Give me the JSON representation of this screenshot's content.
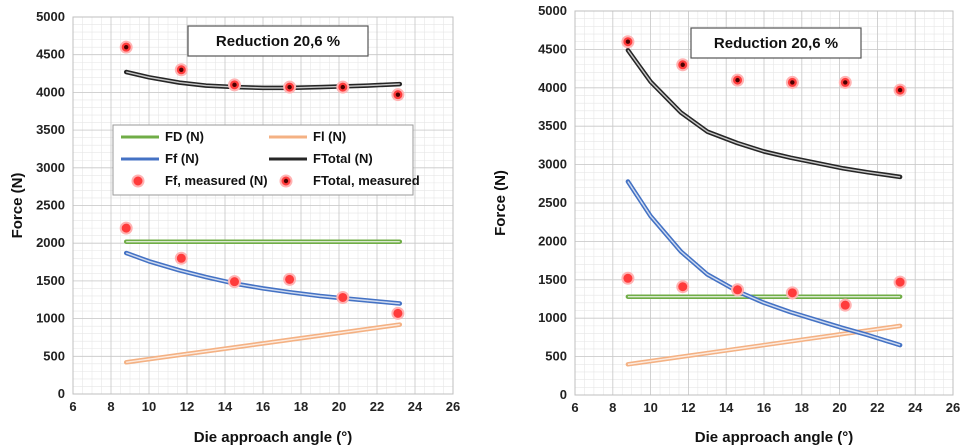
{
  "chart_data": [
    {
      "type": "line",
      "title": "Reduction 20,6 %",
      "xlabel": "Die approach angle (°)",
      "ylabel": "Force (N)",
      "xlim": [
        6,
        26
      ],
      "ylim": [
        0,
        5000
      ],
      "xticks": [
        6,
        8,
        10,
        12,
        14,
        16,
        18,
        20,
        22,
        24,
        26
      ],
      "yticks": [
        0,
        500,
        1000,
        1500,
        2000,
        2500,
        3000,
        3500,
        4000,
        4500,
        5000
      ],
      "grid": true,
      "legend": "center-left",
      "series": [
        {
          "name": "FD (N)",
          "kind": "line",
          "color": "#70ad47",
          "x": [
            8.8,
            23.2
          ],
          "y": [
            2020,
            2020
          ]
        },
        {
          "name": "Fl (N)",
          "kind": "line",
          "color": "#f4b183",
          "x": [
            8.8,
            23.2
          ],
          "y": [
            420,
            920
          ]
        },
        {
          "name": "Ff (N)",
          "kind": "line",
          "color": "#4472c4",
          "x": [
            8.8,
            10,
            11.6,
            13,
            14.6,
            16,
            17.4,
            19,
            20.2,
            21.5,
            23.2
          ],
          "y": [
            1870,
            1760,
            1640,
            1550,
            1460,
            1400,
            1350,
            1300,
            1270,
            1240,
            1200
          ]
        },
        {
          "name": "FTotal (N)",
          "kind": "line",
          "color": "#262626",
          "x": [
            8.8,
            10,
            11.6,
            13,
            14.6,
            16,
            17.4,
            19,
            20.2,
            21.5,
            23.2
          ],
          "y": [
            4270,
            4200,
            4130,
            4090,
            4070,
            4060,
            4060,
            4070,
            4080,
            4090,
            4110
          ]
        },
        {
          "name": "Ff, measured (N)",
          "kind": "marker",
          "marker": "filled",
          "x": [
            8.8,
            11.7,
            14.5,
            17.4,
            20.2,
            23.1
          ],
          "y": [
            2200,
            1800,
            1490,
            1520,
            1280,
            1070
          ]
        },
        {
          "name": "FTotal, measured",
          "kind": "marker",
          "marker": "dotted",
          "x": [
            8.8,
            11.7,
            14.5,
            17.4,
            20.2,
            23.1
          ],
          "y": [
            4600,
            4300,
            4100,
            4070,
            4070,
            3970
          ]
        }
      ]
    },
    {
      "type": "line",
      "title": "Reduction 20,6 %",
      "xlabel": "Die approach angle (°)",
      "ylabel": "Force (N)",
      "xlim": [
        6,
        26
      ],
      "ylim": [
        0,
        5000
      ],
      "xticks": [
        6,
        8,
        10,
        12,
        14,
        16,
        18,
        20,
        22,
        24,
        26
      ],
      "yticks": [
        0,
        500,
        1000,
        1500,
        2000,
        2500,
        3000,
        3500,
        4000,
        4500,
        5000
      ],
      "grid": true,
      "series": [
        {
          "name": "FD (N)",
          "kind": "line",
          "color": "#70ad47",
          "x": [
            8.8,
            23.2
          ],
          "y": [
            1280,
            1280
          ]
        },
        {
          "name": "Fl (N)",
          "kind": "line",
          "color": "#f4b183",
          "x": [
            8.8,
            23.2
          ],
          "y": [
            400,
            900
          ]
        },
        {
          "name": "Ff (N)",
          "kind": "line",
          "color": "#4472c4",
          "x": [
            8.8,
            10,
            11.6,
            13,
            14.6,
            16,
            17.4,
            19,
            20.2,
            21.5,
            23.2
          ],
          "y": [
            2780,
            2330,
            1870,
            1570,
            1350,
            1200,
            1080,
            960,
            870,
            780,
            650
          ]
        },
        {
          "name": "FTotal (N)",
          "kind": "line",
          "color": "#262626",
          "x": [
            8.8,
            10,
            11.6,
            13,
            14.6,
            16,
            17.4,
            19,
            20.2,
            21.5,
            23.2
          ],
          "y": [
            4490,
            4080,
            3680,
            3430,
            3280,
            3170,
            3090,
            3010,
            2950,
            2900,
            2840
          ]
        },
        {
          "name": "Ff, measured (N)",
          "kind": "marker",
          "marker": "filled",
          "x": [
            8.8,
            11.7,
            14.6,
            17.5,
            20.3,
            23.2
          ],
          "y": [
            1520,
            1410,
            1370,
            1330,
            1170,
            1470
          ]
        },
        {
          "name": "FTotal, measured",
          "kind": "marker",
          "marker": "dotted",
          "x": [
            8.8,
            11.7,
            14.6,
            17.5,
            20.3,
            23.2
          ],
          "y": [
            4600,
            4300,
            4100,
            4070,
            4070,
            3970
          ]
        }
      ]
    }
  ]
}
